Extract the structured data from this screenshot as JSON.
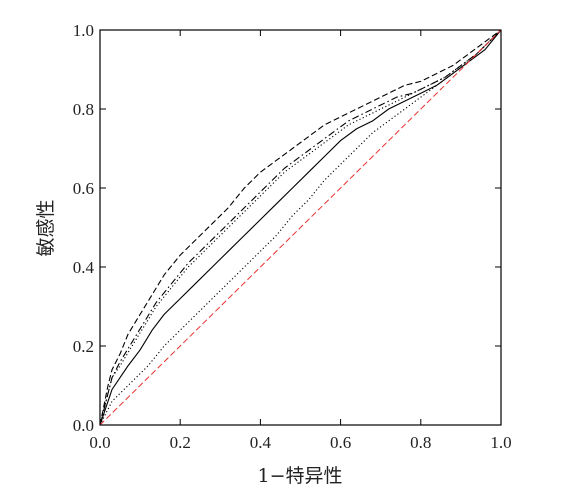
{
  "chart_data": {
    "type": "line",
    "xlabel": "1−特异性",
    "ylabel": "敏感性",
    "xlim": [
      0.0,
      1.0
    ],
    "ylim": [
      0.0,
      1.0
    ],
    "xticks": [
      "0.0",
      "0.2",
      "0.4",
      "0.6",
      "0.8",
      "1.0"
    ],
    "yticks": [
      "0.0",
      "0.2",
      "0.4",
      "0.6",
      "0.8",
      "1.0"
    ],
    "grid": false,
    "legend": "none",
    "series": [
      {
        "style": "solid",
        "color": "#000000",
        "points": [
          [
            0,
            0
          ],
          [
            0.01,
            0.03
          ],
          [
            0.02,
            0.06
          ],
          [
            0.03,
            0.09
          ],
          [
            0.05,
            0.12
          ],
          [
            0.07,
            0.15
          ],
          [
            0.1,
            0.19
          ],
          [
            0.13,
            0.24
          ],
          [
            0.16,
            0.28
          ],
          [
            0.2,
            0.32
          ],
          [
            0.24,
            0.36
          ],
          [
            0.28,
            0.4
          ],
          [
            0.32,
            0.44
          ],
          [
            0.36,
            0.48
          ],
          [
            0.4,
            0.52
          ],
          [
            0.44,
            0.56
          ],
          [
            0.48,
            0.6
          ],
          [
            0.52,
            0.64
          ],
          [
            0.56,
            0.68
          ],
          [
            0.6,
            0.72
          ],
          [
            0.64,
            0.75
          ],
          [
            0.68,
            0.77
          ],
          [
            0.72,
            0.8
          ],
          [
            0.76,
            0.82
          ],
          [
            0.8,
            0.84
          ],
          [
            0.84,
            0.86
          ],
          [
            0.88,
            0.89
          ],
          [
            0.92,
            0.92
          ],
          [
            0.96,
            0.95
          ],
          [
            1,
            1
          ]
        ]
      },
      {
        "style": "dash-dot",
        "color": "#000000",
        "points": [
          [
            0,
            0
          ],
          [
            0.01,
            0.04
          ],
          [
            0.02,
            0.08
          ],
          [
            0.03,
            0.12
          ],
          [
            0.05,
            0.16
          ],
          [
            0.08,
            0.21
          ],
          [
            0.11,
            0.26
          ],
          [
            0.14,
            0.31
          ],
          [
            0.18,
            0.36
          ],
          [
            0.22,
            0.41
          ],
          [
            0.26,
            0.45
          ],
          [
            0.3,
            0.49
          ],
          [
            0.34,
            0.53
          ],
          [
            0.38,
            0.57
          ],
          [
            0.42,
            0.61
          ],
          [
            0.46,
            0.65
          ],
          [
            0.5,
            0.68
          ],
          [
            0.54,
            0.71
          ],
          [
            0.58,
            0.74
          ],
          [
            0.62,
            0.77
          ],
          [
            0.66,
            0.79
          ],
          [
            0.7,
            0.81
          ],
          [
            0.74,
            0.83
          ],
          [
            0.78,
            0.84
          ],
          [
            0.82,
            0.86
          ],
          [
            0.86,
            0.88
          ],
          [
            0.9,
            0.91
          ],
          [
            0.94,
            0.94
          ],
          [
            0.97,
            0.97
          ],
          [
            1,
            1
          ]
        ]
      },
      {
        "style": "dashed",
        "color": "#000000",
        "points": [
          [
            0,
            0
          ],
          [
            0.01,
            0.05
          ],
          [
            0.02,
            0.1
          ],
          [
            0.03,
            0.14
          ],
          [
            0.05,
            0.18
          ],
          [
            0.07,
            0.23
          ],
          [
            0.1,
            0.28
          ],
          [
            0.13,
            0.33
          ],
          [
            0.16,
            0.38
          ],
          [
            0.2,
            0.43
          ],
          [
            0.24,
            0.47
          ],
          [
            0.28,
            0.51
          ],
          [
            0.32,
            0.55
          ],
          [
            0.36,
            0.6
          ],
          [
            0.4,
            0.64
          ],
          [
            0.44,
            0.67
          ],
          [
            0.48,
            0.7
          ],
          [
            0.52,
            0.73
          ],
          [
            0.56,
            0.76
          ],
          [
            0.6,
            0.78
          ],
          [
            0.64,
            0.8
          ],
          [
            0.68,
            0.82
          ],
          [
            0.72,
            0.84
          ],
          [
            0.76,
            0.86
          ],
          [
            0.8,
            0.87
          ],
          [
            0.84,
            0.89
          ],
          [
            0.88,
            0.91
          ],
          [
            0.92,
            0.94
          ],
          [
            0.96,
            0.97
          ],
          [
            1,
            1
          ]
        ]
      },
      {
        "style": "dotted",
        "color": "#000000",
        "points": [
          [
            0,
            0
          ],
          [
            0.01,
            0.02
          ],
          [
            0.02,
            0.04
          ],
          [
            0.03,
            0.06
          ],
          [
            0.05,
            0.08
          ],
          [
            0.08,
            0.11
          ],
          [
            0.12,
            0.15
          ],
          [
            0.16,
            0.2
          ],
          [
            0.2,
            0.24
          ],
          [
            0.24,
            0.28
          ],
          [
            0.28,
            0.32
          ],
          [
            0.32,
            0.36
          ],
          [
            0.36,
            0.4
          ],
          [
            0.4,
            0.44
          ],
          [
            0.44,
            0.48
          ],
          [
            0.48,
            0.53
          ],
          [
            0.52,
            0.57
          ],
          [
            0.56,
            0.62
          ],
          [
            0.6,
            0.66
          ],
          [
            0.64,
            0.7
          ],
          [
            0.68,
            0.74
          ],
          [
            0.72,
            0.77
          ],
          [
            0.76,
            0.8
          ],
          [
            0.8,
            0.83
          ],
          [
            0.84,
            0.86
          ],
          [
            0.88,
            0.89
          ],
          [
            0.92,
            0.92
          ],
          [
            0.96,
            0.96
          ],
          [
            1,
            1
          ]
        ]
      },
      {
        "style": "dotted",
        "color": "#000000",
        "points": [
          [
            0,
            0
          ],
          [
            0.01,
            0.04
          ],
          [
            0.02,
            0.08
          ],
          [
            0.03,
            0.12
          ],
          [
            0.05,
            0.15
          ],
          [
            0.08,
            0.2
          ],
          [
            0.11,
            0.25
          ],
          [
            0.14,
            0.3
          ],
          [
            0.18,
            0.35
          ],
          [
            0.22,
            0.4
          ],
          [
            0.26,
            0.44
          ],
          [
            0.3,
            0.48
          ],
          [
            0.34,
            0.52
          ],
          [
            0.38,
            0.56
          ],
          [
            0.42,
            0.6
          ],
          [
            0.46,
            0.64
          ],
          [
            0.5,
            0.67
          ],
          [
            0.54,
            0.7
          ],
          [
            0.58,
            0.73
          ],
          [
            0.62,
            0.76
          ],
          [
            0.66,
            0.78
          ],
          [
            0.7,
            0.8
          ],
          [
            0.74,
            0.82
          ],
          [
            0.78,
            0.84
          ],
          [
            0.82,
            0.86
          ],
          [
            0.86,
            0.88
          ],
          [
            0.9,
            0.91
          ],
          [
            0.94,
            0.94
          ],
          [
            0.97,
            0.97
          ],
          [
            1,
            1
          ]
        ]
      },
      {
        "style": "dashed",
        "color": "#e8312f",
        "points": [
          [
            0,
            0
          ],
          [
            1,
            1
          ]
        ]
      }
    ]
  }
}
